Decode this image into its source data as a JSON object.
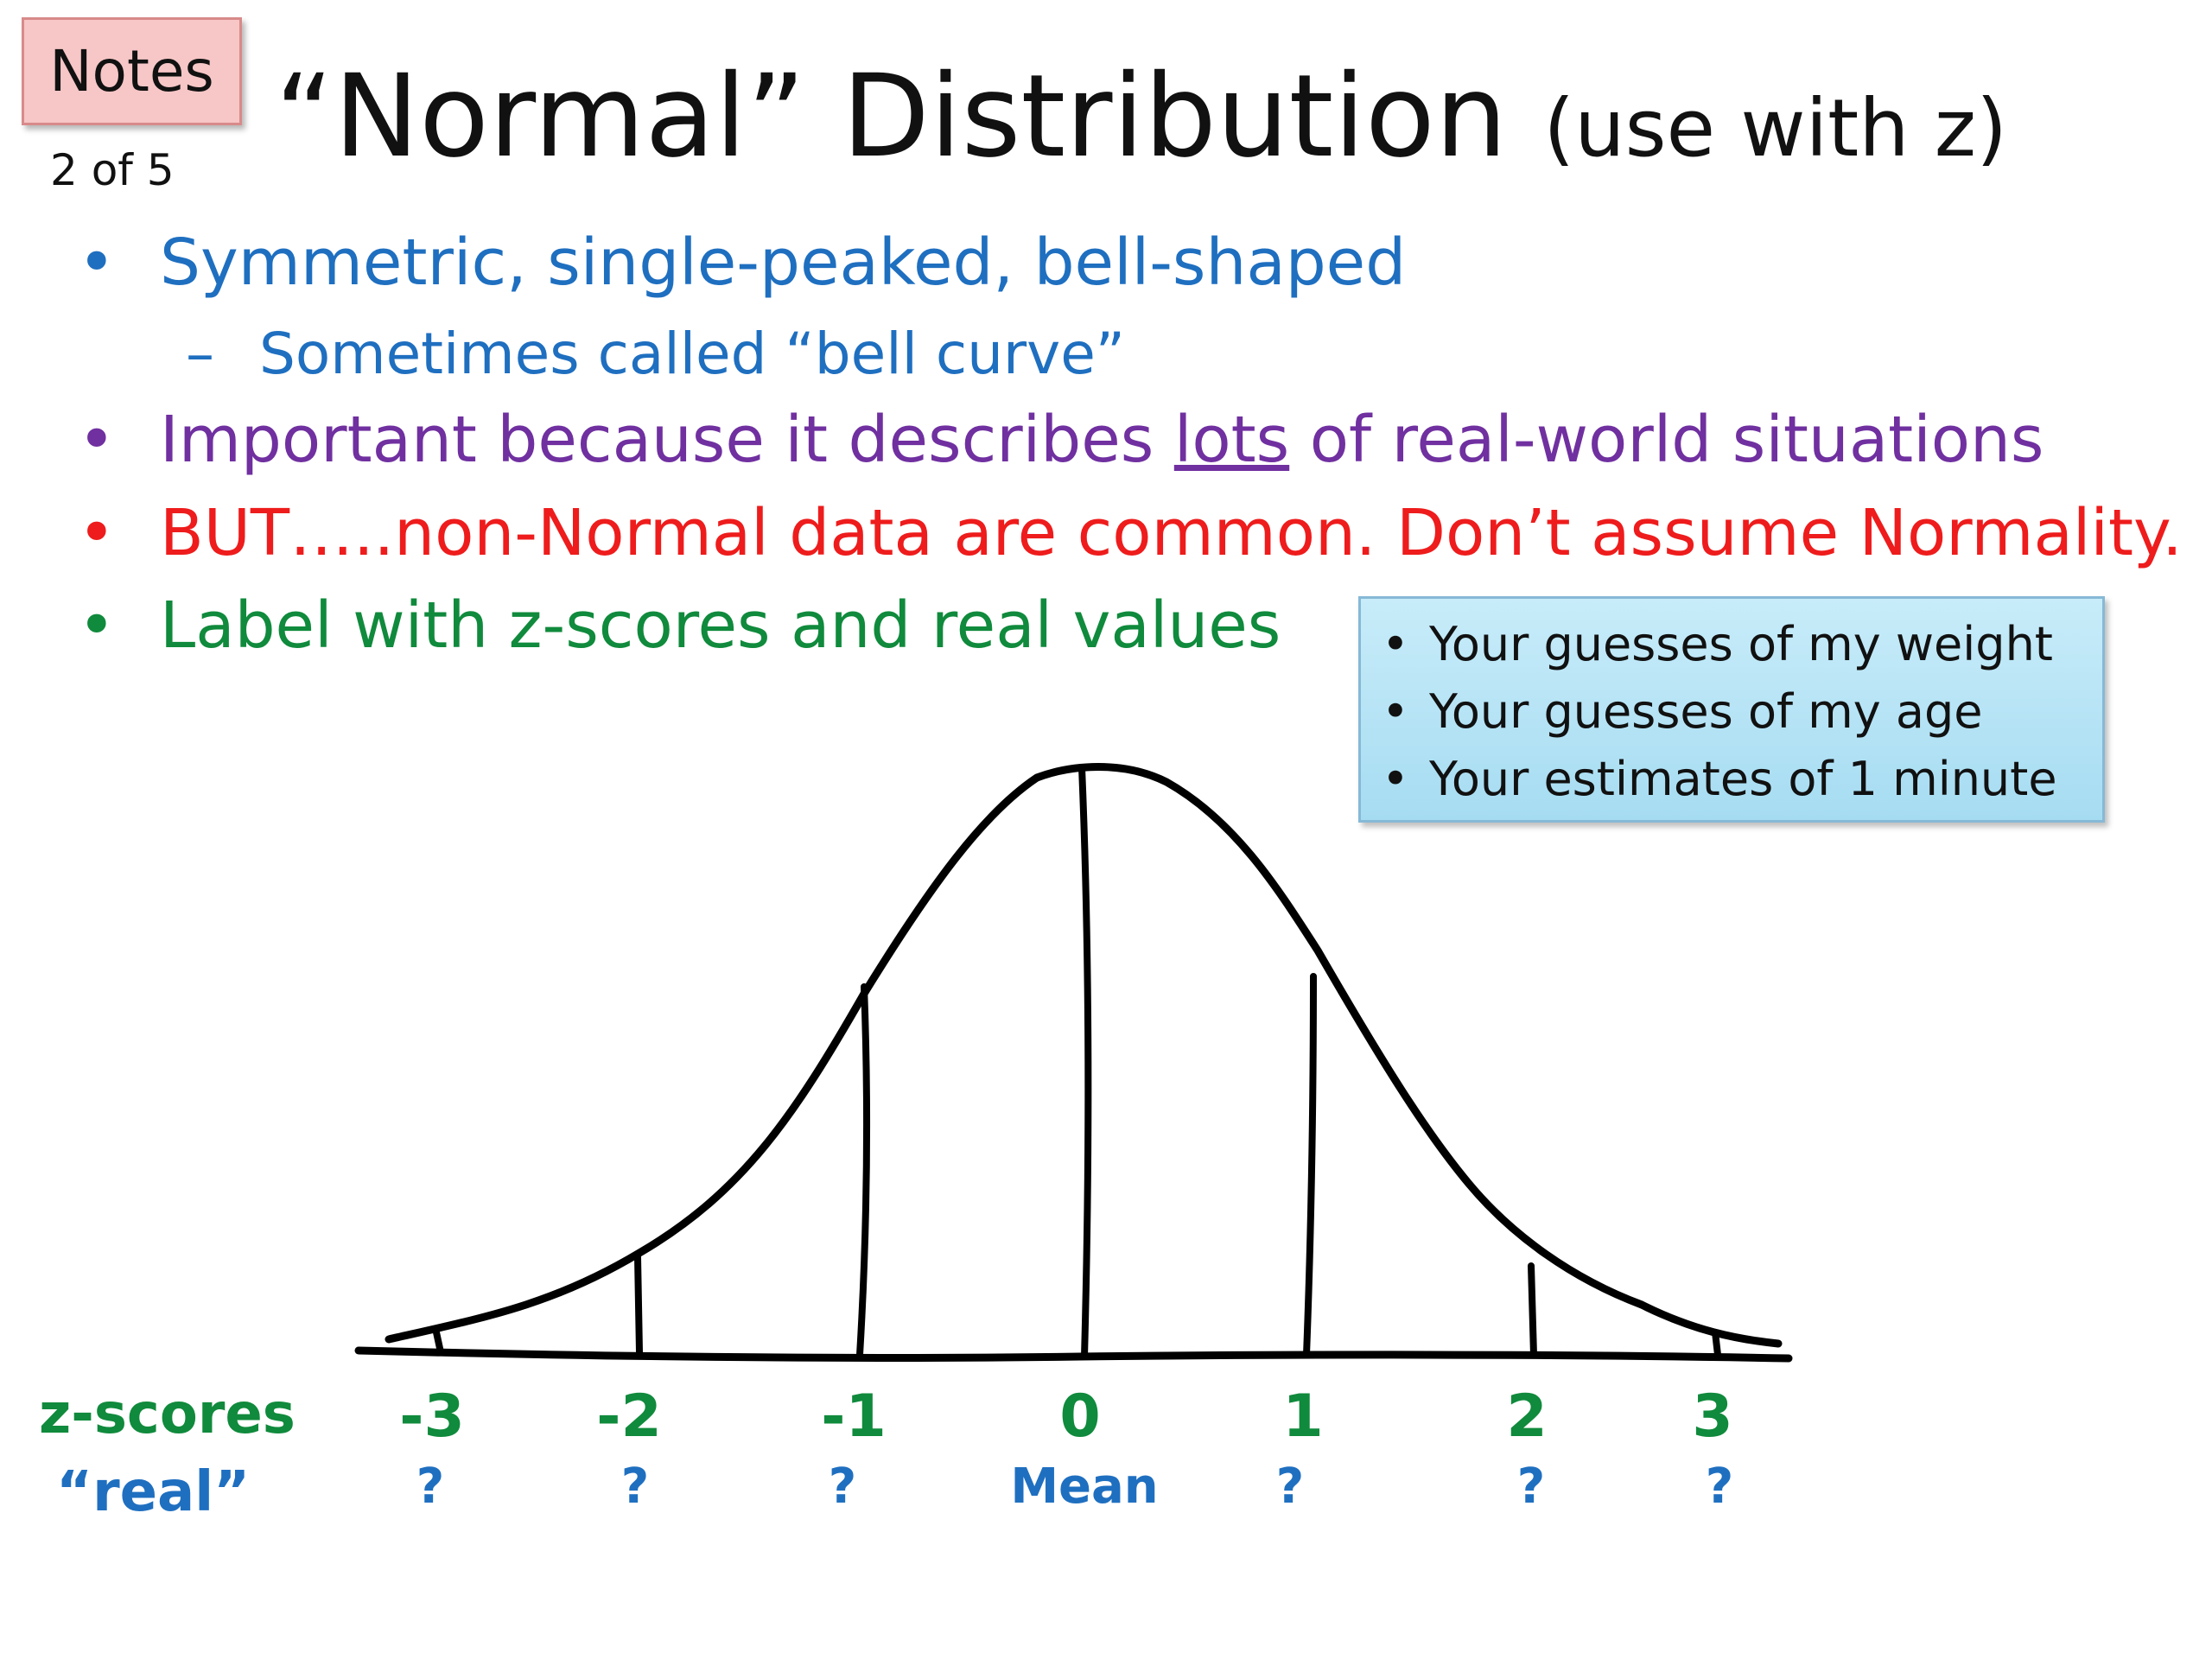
{
  "notes_badge": "Notes",
  "page_indicator": "2 of 5",
  "title": {
    "main": "“Normal” Distribution",
    "sub": "(use with z)"
  },
  "bullets": {
    "b1": "Symmetric, single-peaked, bell-shaped",
    "b1_sub": "Sometimes called “bell curve”",
    "b2_before": "Important because it describes ",
    "b2_underlined": "lots",
    "b2_after": " of real-world situations",
    "b3": "BUT…..non-Normal data are common. Don’t assume Normality.",
    "b4": "Label with z-scores and real values",
    "marker": "•",
    "sub_marker": "–"
  },
  "examples": [
    "Your guesses of my weight",
    "Your guesses of my age",
    "Your estimates of 1 minute"
  ],
  "axis": {
    "z_label": "z-scores",
    "real_label": "“real”",
    "z_ticks": [
      "-3",
      "-2",
      "-1",
      "0",
      "1",
      "2",
      "3"
    ],
    "real_ticks": [
      "?",
      "?",
      "?",
      "Mean",
      "?",
      "?",
      "?"
    ]
  },
  "colors": {
    "blue": "#1f6fc0",
    "purple": "#7030a0",
    "red": "#ee1c1c",
    "green": "#108a3c"
  }
}
